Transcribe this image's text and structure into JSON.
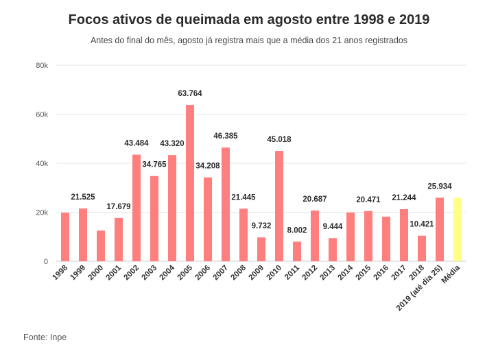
{
  "chart_data": {
    "type": "bar",
    "title": "Focos ativos de queimada em agosto entre 1998 e 2019",
    "subtitle": "Antes do final do mês, agosto já registra mais que a média dos 21 anos registrados",
    "source": "Fonte: Inpe",
    "xlabel": "",
    "ylabel": "",
    "ylim": [
      0,
      80000
    ],
    "yticks": [
      0,
      20000,
      40000,
      60000,
      80000
    ],
    "ytick_labels": [
      "0",
      "20k",
      "40k",
      "60k",
      "80k"
    ],
    "grid": true,
    "categories": [
      "1998",
      "1999",
      "2000",
      "2001",
      "2002",
      "2003",
      "2004",
      "2005",
      "2006",
      "2007",
      "2008",
      "2009",
      "2010",
      "2011",
      "2012",
      "2013",
      "2014",
      "2015",
      "2016",
      "2017",
      "2018",
      "2019 (até dia 25)",
      "Média"
    ],
    "values": [
      19800,
      21525,
      12500,
      17679,
      43484,
      34765,
      43320,
      63764,
      34208,
      46385,
      21445,
      9732,
      45018,
      8002,
      20687,
      9444,
      19900,
      20471,
      18200,
      21244,
      10421,
      25934,
      25900
    ],
    "data_labels": [
      "",
      "21.525",
      "",
      "17.679",
      "43.484",
      "34.765",
      "43.320",
      "63.764",
      "34.208",
      "46.385",
      "21.445",
      "9.732",
      "45.018",
      "8.002",
      "20.687",
      "9.444",
      "",
      "20.471",
      "",
      "21.244",
      "10.421",
      "25.934",
      ""
    ],
    "colors": {
      "bar": "#ff7f7f",
      "highlight": "#ffff88",
      "grid": "#e6e6e6",
      "axis": "#cccccc"
    },
    "highlight_index": 22
  }
}
